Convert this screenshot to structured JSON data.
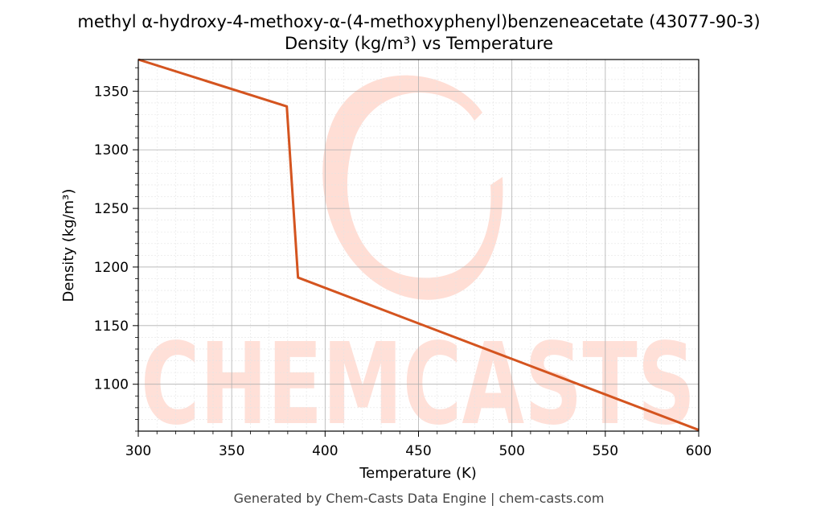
{
  "chart_data": {
    "type": "line",
    "title": "methyl α-hydroxy-4-methoxy-α-(4-methoxyphenyl)benzeneacetate (43077-90-3)",
    "subtitle": "Density (kg/m³) vs Temperature",
    "xlabel": "Temperature (K)",
    "ylabel": "Density (kg/m³)",
    "xlim": [
      300,
      600
    ],
    "ylim": [
      1060,
      1377
    ],
    "xticks": [
      300,
      350,
      400,
      450,
      500,
      550,
      600
    ],
    "yticks": [
      1100,
      1150,
      1200,
      1250,
      1300,
      1350
    ],
    "grid": true,
    "series": [
      {
        "color": "#d4541f",
        "x": [
          300,
          379.5,
          385.5,
          600
        ],
        "y": [
          1377,
          1337,
          1191,
          1061
        ]
      }
    ]
  },
  "watermark": "CHEMCASTS",
  "footer": "Generated by Chem-Casts Data Engine | chem-casts.com"
}
